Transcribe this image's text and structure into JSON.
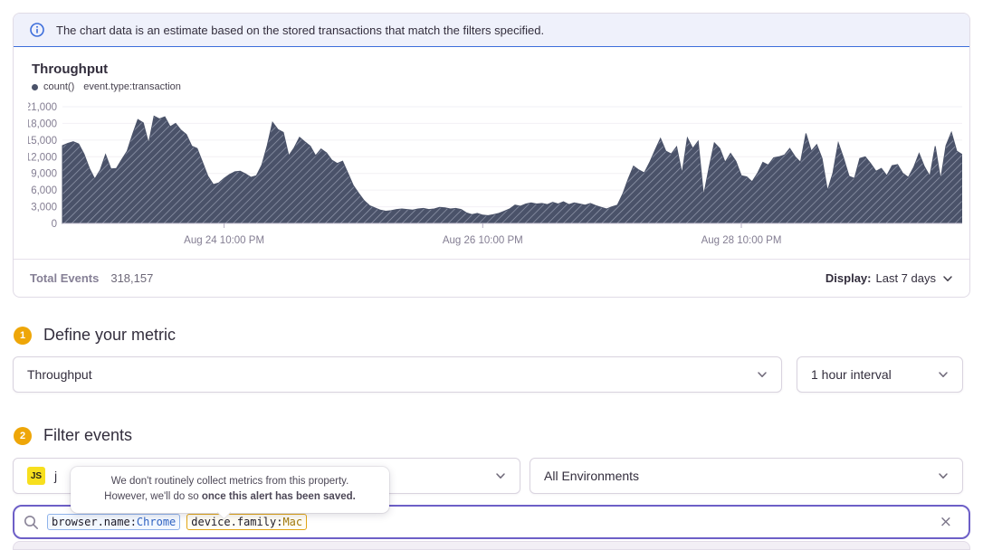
{
  "banner": {
    "text": "The chart data is an estimate based on the stored transactions that match the filters specified."
  },
  "chart_panel": {
    "title": "Throughput",
    "legend": {
      "series_label": "count()",
      "filter_label": "event.type:transaction"
    },
    "footer": {
      "total_label": "Total Events",
      "total_value": "318,157",
      "display_label": "Display:",
      "display_value": "Last 7 days"
    }
  },
  "chart_data": {
    "type": "area",
    "title": "Throughput",
    "legend_entries": [
      "count() event.type:transaction"
    ],
    "xlabel": "",
    "ylabel": "",
    "ylim": [
      0,
      21000
    ],
    "grid": "horizontal",
    "fill_style": "diagonal-hatch",
    "colors": {
      "area": "#4a5269",
      "hatch": "#969cb0",
      "grid": "#f2f0f4",
      "axis_text": "#837d92"
    },
    "y_ticks": [
      0,
      3000,
      6000,
      9000,
      12000,
      15000,
      18000,
      21000
    ],
    "y_tick_labels": [
      "0",
      "3,000",
      "6,000",
      "9,000",
      "12,000",
      "15,000",
      "18,000",
      "21,000"
    ],
    "x_tick_labels": [
      "Aug 24 10:00 PM",
      "Aug 26 10:00 PM",
      "Aug 28 10:00 PM"
    ],
    "x_tick_indices": [
      30,
      78,
      126
    ],
    "series": [
      {
        "name": "count()",
        "values": [
          14000,
          14400,
          14700,
          14300,
          12500,
          9900,
          8000,
          9600,
          12400,
          9800,
          9900,
          11500,
          13000,
          16000,
          18700,
          18100,
          14400,
          19300,
          18800,
          19200,
          17400,
          18000,
          16800,
          16000,
          13900,
          13500,
          11000,
          8500,
          7000,
          7300,
          8100,
          8800,
          9300,
          9400,
          8900,
          8300,
          8600,
          10500,
          14000,
          18200,
          16900,
          16400,
          12200,
          13600,
          15500,
          14700,
          13900,
          12200,
          13400,
          12700,
          11400,
          10800,
          11200,
          9000,
          6800,
          5400,
          4100,
          3200,
          2800,
          2400,
          2200,
          2300,
          2500,
          2600,
          2500,
          2400,
          2600,
          2700,
          2500,
          2600,
          2900,
          2800,
          2600,
          2700,
          2500,
          1900,
          1600,
          1800,
          1500,
          1400,
          1600,
          1800,
          2200,
          2600,
          3300,
          3100,
          3500,
          3700,
          3500,
          3600,
          3400,
          3800,
          3500,
          3900,
          3400,
          3700,
          3500,
          3300,
          3600,
          3200,
          2900,
          2600,
          3000,
          3300,
          5300,
          8000,
          10300,
          9600,
          9100,
          11000,
          13200,
          15300,
          13000,
          12500,
          13800,
          9000,
          15400,
          13500,
          14800,
          5000,
          10000,
          14500,
          13500,
          11000,
          12600,
          11200,
          8600,
          8400,
          7500,
          9000,
          11000,
          10500,
          11800,
          12000,
          12300,
          13500,
          12000,
          11000,
          16200,
          13000,
          14200,
          11700,
          5900,
          9000,
          14500,
          11700,
          8500,
          8100,
          11700,
          12000,
          10800,
          9400,
          9900,
          8600,
          10400,
          10600,
          9000,
          8300,
          10100,
          12600,
          10200,
          8500,
          13900,
          7900,
          14000,
          16400,
          13000,
          12400
        ]
      }
    ]
  },
  "sections": {
    "metric": {
      "step": "1",
      "heading": "Define your metric",
      "metric_select_value": "Throughput",
      "interval_select_value": "1 hour interval"
    },
    "filter": {
      "step": "2",
      "heading": "Filter events",
      "project_platform_badge": "JS",
      "project_name_fragment": "j",
      "environment_select_value": "All Environments"
    }
  },
  "tooltip": {
    "line1": "We don't routinely collect metrics from this property.",
    "line2_normal": "However, we'll do so ",
    "line2_bold": "once this alert has been saved."
  },
  "search": {
    "tokens": [
      {
        "key": "browser.name:",
        "value": "Chrome"
      },
      {
        "key": "device.family:",
        "value": "Mac"
      }
    ],
    "clear_glyph": "×"
  }
}
